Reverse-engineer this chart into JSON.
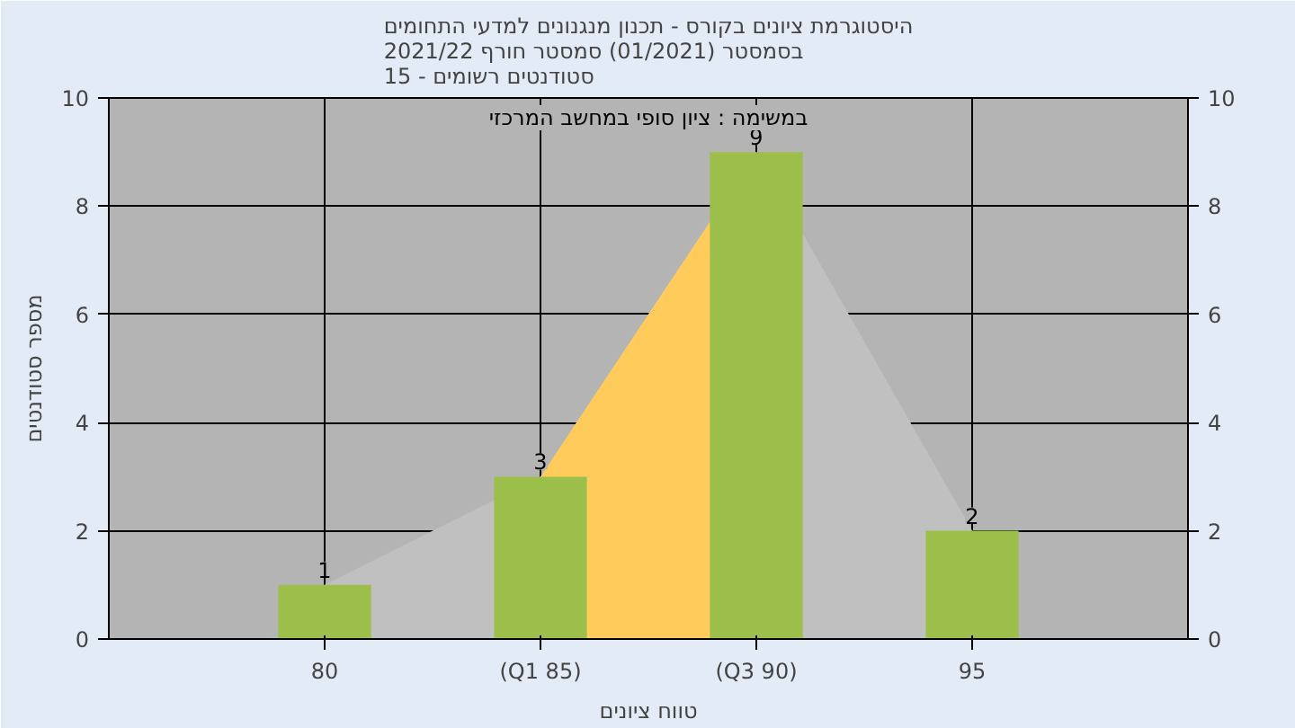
{
  "chart_data": {
    "type": "bar",
    "title": "היסטוגרמת ציונים בקורס - תכנון מנגנונים למדעי התחומים\nבסמסטר  (01/2021)  סמסטר חורף 2021/22\nסטודנטים רשומים - 15",
    "xlabel": "טווח ציונים",
    "ylabel": "מספר סטודנטים",
    "categories": [
      "80",
      "(Q1 85)",
      "(Q3 90)",
      "95"
    ],
    "series": [
      {
        "type": "area",
        "color": "#c0c0c0",
        "values": [
          1,
          3,
          9,
          2
        ],
        "value_labels": [
          null,
          null,
          null,
          null
        ]
      },
      {
        "type": "area",
        "color": "#ffcc5c",
        "values": [
          null,
          3,
          9,
          null
        ],
        "value_labels": [
          null,
          null,
          null,
          null
        ]
      },
      {
        "color": "#9bbf4a",
        "values": [
          1,
          3,
          9,
          2
        ]
      }
    ],
    "ylim": [
      0,
      10
    ],
    "yticks": [
      0,
      2,
      4,
      6,
      8,
      10
    ],
    "y2lim": [
      0,
      10
    ],
    "y2ticks": [
      0,
      2,
      4,
      6,
      8,
      10
    ],
    "grid": true,
    "data_labels": true,
    "annotations": [
      "במשימה : ציון סופי במחשב המרכזי"
    ]
  }
}
